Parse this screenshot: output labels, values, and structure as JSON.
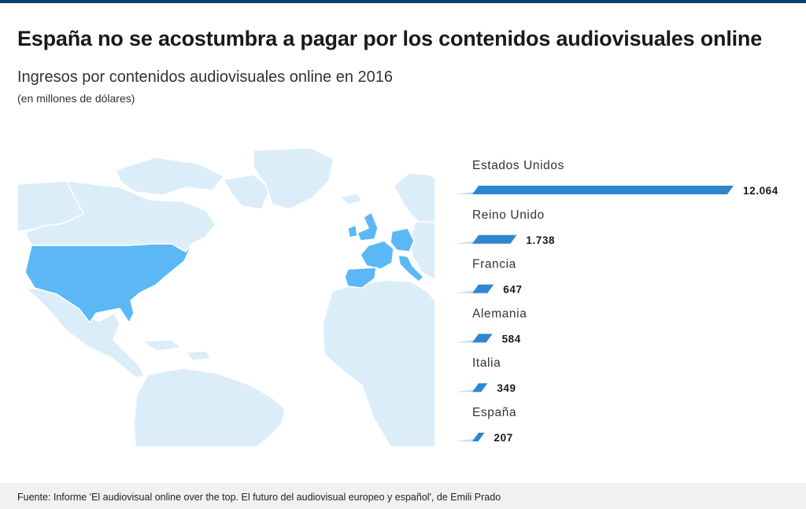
{
  "title": "España no se acostumbra a pagar por los contenidos audiovisuales online",
  "subtitle": "Ingresos por contenidos audiovisuales online en 2016",
  "units_note": "(en millones de dólares)",
  "source": "Fuente: Informe 'El audiovisual online over the top. El futuro del audiovisual europeo y español', de Emili Prado",
  "colors": {
    "bar": "#2f86cf",
    "bar_dark": "#1f6fb4",
    "map_land": "#dcedfa",
    "map_highlight": "#5bb8f5",
    "map_border": "#ffffff"
  },
  "chart_data": {
    "type": "bar",
    "orientation": "horizontal",
    "categories": [
      "Estados Unidos",
      "Reino Unido",
      "Francia",
      "Alemania",
      "Italia",
      "España"
    ],
    "values": [
      12064,
      1738,
      647,
      584,
      349,
      207
    ],
    "value_labels": [
      "12.064",
      "1.738",
      "647",
      "584",
      "349",
      "207"
    ],
    "title": "España no se acostumbra a pagar por los contenidos audiovisuales online",
    "xlabel": "",
    "ylabel": "",
    "grid": false,
    "legend": "none"
  },
  "map": {
    "highlighted_countries": [
      "Estados Unidos",
      "Reino Unido",
      "Francia",
      "Alemania",
      "Italia",
      "España"
    ]
  }
}
